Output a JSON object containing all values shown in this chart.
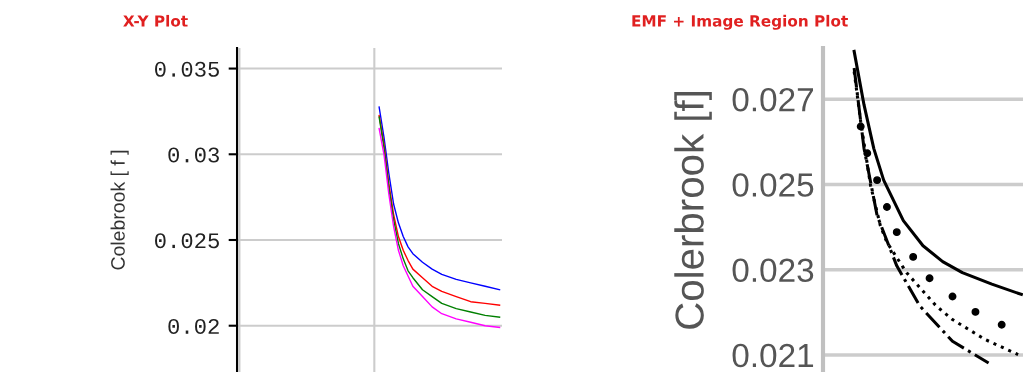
{
  "chart_data": [
    {
      "type": "line",
      "title": "X-Y Plot",
      "ylabel": "Colebrook [ f ]",
      "categories": [
        null,
        null,
        null,
        null,
        null,
        null,
        null,
        null,
        null,
        null,
        null,
        null,
        null,
        null,
        null,
        null,
        null,
        null,
        null,
        null,
        null,
        null,
        null,
        null,
        null,
        null,
        null,
        null,
        null,
        null,
        null,
        null,
        null,
        null,
        null,
        null,
        null,
        null,
        null,
        null,
        null,
        null,
        null,
        null,
        null,
        null,
        null,
        null,
        null,
        null,
        null,
        null,
        null,
        null,
        null
      ],
      "ylim": [
        0.0173,
        0.0362
      ],
      "yticks": [
        0.02,
        0.025,
        0.03,
        0.035
      ],
      "grid": true,
      "legend": false,
      "series": [
        {
          "color": "#0000ff",
          "values": [
            null,
            null,
            null,
            null,
            null,
            null,
            null,
            null,
            null,
            null,
            null,
            null,
            null,
            null,
            null,
            null,
            null,
            null,
            null,
            null,
            null,
            null,
            null,
            null,
            null,
            null,
            null,
            null,
            null,
            0.03275,
            0.031,
            0.0289,
            0.0271,
            0.026,
            0.0252,
            0.0246,
            0.0242,
            null,
            0.0237,
            null,
            0.0233,
            null,
            0.023,
            null,
            null,
            0.0227,
            null,
            null,
            0.0225,
            null,
            null,
            0.0223,
            null,
            null,
            0.0221
          ]
        },
        {
          "color": "#ff0000",
          "values": [
            null,
            null,
            null,
            null,
            null,
            null,
            null,
            null,
            null,
            null,
            null,
            null,
            null,
            null,
            null,
            null,
            null,
            null,
            null,
            null,
            null,
            null,
            null,
            null,
            null,
            null,
            null,
            null,
            null,
            0.03226,
            0.0306,
            0.0283,
            0.0265,
            0.0252,
            0.0244,
            0.0238,
            0.0233,
            null,
            0.0228,
            null,
            0.0223,
            null,
            0.022,
            null,
            null,
            0.0217,
            null,
            null,
            0.0214,
            null,
            null,
            0.0213,
            null,
            null,
            0.0212
          ]
        },
        {
          "color": "#008000",
          "values": [
            null,
            null,
            null,
            null,
            null,
            null,
            null,
            null,
            null,
            null,
            null,
            null,
            null,
            null,
            null,
            null,
            null,
            null,
            null,
            null,
            null,
            null,
            null,
            null,
            null,
            null,
            null,
            null,
            null,
            0.03217,
            0.0304,
            0.0281,
            0.0262,
            0.0248,
            0.0239,
            0.0232,
            0.0228,
            null,
            0.0221,
            null,
            0.0217,
            null,
            0.0213,
            null,
            null,
            0.021,
            null,
            null,
            0.0208,
            null,
            null,
            0.0206,
            null,
            null,
            0.0205
          ]
        },
        {
          "color": "#ff00ff",
          "values": [
            null,
            null,
            null,
            null,
            null,
            null,
            null,
            null,
            null,
            null,
            null,
            null,
            null,
            null,
            null,
            null,
            null,
            null,
            null,
            null,
            null,
            null,
            null,
            null,
            null,
            null,
            null,
            null,
            null,
            0.0315,
            0.03,
            0.0277,
            0.0258,
            0.0244,
            0.0235,
            0.0229,
            0.0223,
            null,
            0.0217,
            null,
            0.0211,
            null,
            0.0207,
            null,
            null,
            0.0204,
            null,
            null,
            0.0202,
            null,
            null,
            0.02,
            null,
            null,
            0.0199
          ]
        }
      ]
    },
    {
      "type": "line",
      "title": "EMF + Image Region Plot",
      "ylabel": "Colerbrook [f]",
      "categories": [
        null,
        null,
        null,
        null,
        null,
        null,
        null,
        null,
        null,
        null,
        null,
        null,
        null,
        null,
        null,
        null,
        null,
        null,
        null,
        null,
        null,
        null,
        null,
        null,
        null,
        null,
        null,
        null,
        null,
        null,
        null,
        null,
        null,
        null,
        null,
        null,
        null,
        null,
        null,
        null,
        null,
        null,
        null,
        null,
        null,
        null,
        null,
        null,
        null,
        null,
        null,
        null,
        null,
        null,
        null,
        null,
        null,
        null,
        null,
        null,
        null
      ],
      "ylim": [
        0.0206,
        0.0282
      ],
      "yticks": [
        0.021,
        0.023,
        0.025,
        0.027
      ],
      "grid": "y",
      "legend": false,
      "series": [
        {
          "color": "#000000",
          "line_style": "solid",
          "values": [
            null,
            null,
            null,
            null,
            null,
            null,
            null,
            null,
            null,
            0.02812,
            null,
            null,
            0.02687,
            null,
            null,
            0.02584,
            null,
            null,
            0.0251,
            null,
            null,
            null,
            null,
            null,
            0.02415,
            null,
            null,
            null,
            null,
            null,
            0.02356,
            null,
            null,
            null,
            null,
            null,
            0.02319,
            null,
            null,
            null,
            null,
            null,
            0.02293,
            null,
            null,
            null,
            null,
            null,
            null,
            null,
            null,
            0.02266,
            null,
            null,
            null,
            null,
            null,
            null,
            null,
            null,
            0.02242
          ]
        },
        {
          "color": "#000000",
          "line_style": "dotted",
          "values": [
            null,
            null,
            null,
            null,
            null,
            null,
            null,
            null,
            null,
            0.02765,
            null,
            0.02647,
            null,
            null,
            0.02498,
            null,
            null,
            0.02403,
            null,
            0.02364,
            null,
            null,
            null,
            null,
            null,
            0.02293,
            null,
            null,
            null,
            null,
            null,
            null,
            null,
            null,
            0.02215,
            null,
            null,
            null,
            null,
            0.02183,
            null,
            null,
            null,
            null,
            null,
            null,
            null,
            null,
            null,
            0.02136,
            null,
            null,
            null,
            null,
            null,
            null,
            null,
            null,
            null,
            0.02101,
            null
          ]
        },
        {
          "color": "#000000",
          "line_style": "dashed",
          "values": [
            null,
            null,
            null,
            null,
            null,
            null,
            null,
            null,
            null,
            0.02773,
            null,
            null,
            0.02585,
            null,
            null,
            null,
            0.02427,
            null,
            null,
            null,
            null,
            null,
            0.02309,
            null,
            null,
            null,
            null,
            null,
            null,
            0.02215,
            null,
            null,
            null,
            null,
            null,
            null,
            null,
            null,
            null,
            0.02132,
            null,
            null,
            null,
            null,
            null,
            null,
            null,
            null,
            null,
            null,
            0.02081,
            null,
            null,
            null,
            null,
            null,
            null,
            null,
            null,
            null,
            null
          ]
        },
        {
          "type": "scatter",
          "color": "#000000",
          "marker": "circle",
          "values": [
            null,
            null,
            null,
            null,
            null,
            null,
            null,
            null,
            null,
            null,
            null,
            0.02636,
            null,
            0.02573,
            null,
            null,
            0.0251,
            null,
            null,
            0.02447,
            null,
            null,
            0.02388,
            null,
            null,
            null,
            null,
            0.0233,
            null,
            null,
            null,
            null,
            0.0228,
            null,
            null,
            null,
            null,
            null,
            null,
            0.02237,
            null,
            null,
            null,
            null,
            null,
            null,
            0.02201,
            null,
            null,
            null,
            null,
            null,
            null,
            null,
            0.02171,
            null,
            null,
            null,
            null,
            null,
            null
          ]
        }
      ]
    }
  ]
}
